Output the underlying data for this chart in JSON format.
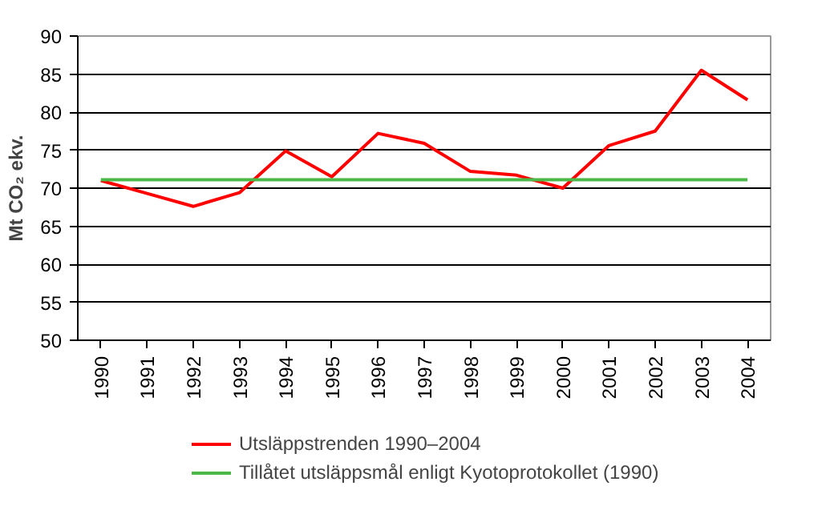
{
  "chart_data": {
    "type": "line",
    "ylabel": "Mt CO₂ ekv.",
    "categories": [
      "1990",
      "1991",
      "1992",
      "1993",
      "1994",
      "1995",
      "1996",
      "1997",
      "1998",
      "1999",
      "2000",
      "2001",
      "2002",
      "2003",
      "2004"
    ],
    "series": [
      {
        "name": "Utsläppstrenden 1990–2004",
        "color": "#ff0000",
        "values": [
          71.0,
          69.3,
          67.6,
          69.4,
          74.9,
          71.5,
          77.2,
          75.9,
          72.2,
          71.7,
          70.0,
          75.6,
          77.5,
          85.5,
          81.6
        ]
      },
      {
        "name": "Tillåtet utsläppsmål enligt Kyotoprotokollet (1990)",
        "color": "#4cb848",
        "values": [
          71.1,
          71.1,
          71.1,
          71.1,
          71.1,
          71.1,
          71.1,
          71.1,
          71.1,
          71.1,
          71.1,
          71.1,
          71.1,
          71.1,
          71.1
        ]
      }
    ],
    "ylim": [
      50,
      90
    ],
    "yticks": [
      50,
      55,
      60,
      65,
      70,
      75,
      80,
      85,
      90
    ],
    "grid": "y",
    "legend": "bottom",
    "marker": "none",
    "line_style": "solid"
  }
}
